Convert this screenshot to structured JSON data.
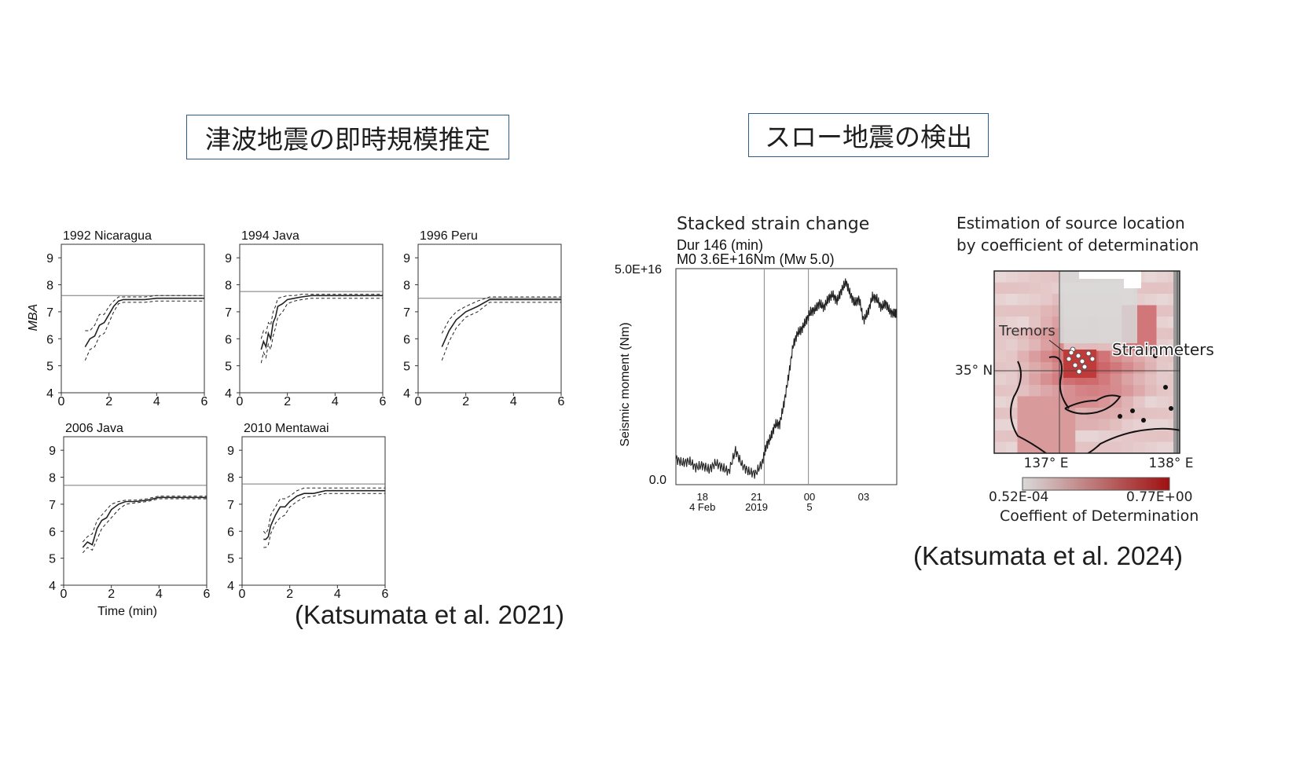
{
  "titles": {
    "left": "津波地震の即時規模推定",
    "right": "スロー地震の検出"
  },
  "citations": {
    "left": "(Katsumata et al. 2021)",
    "right": "(Katsumata et al. 2024)"
  },
  "chart_data": [
    {
      "type": "line",
      "title": "1992 Nicaragua",
      "ylabel": "MBA",
      "xlabel": "",
      "xlim": [
        0,
        6
      ],
      "ylim": [
        4,
        9.5
      ],
      "xticks": [
        "0",
        "2",
        "4",
        "6"
      ],
      "yticks": [
        "4",
        "5",
        "6",
        "7",
        "8",
        "9"
      ],
      "reference": 7.6,
      "series": [
        {
          "style": "solid",
          "x": [
            1.0,
            1.2,
            1.4,
            1.6,
            1.8,
            2.0,
            2.2,
            2.4,
            2.6,
            2.8,
            3.0,
            3.5,
            4.0,
            4.5,
            5.0,
            6.0
          ],
          "y": [
            5.7,
            6.0,
            6.1,
            6.5,
            6.6,
            6.9,
            7.2,
            7.4,
            7.45,
            7.45,
            7.45,
            7.45,
            7.5,
            7.5,
            7.5,
            7.5
          ]
        },
        {
          "style": "dashed",
          "x": [
            1.0,
            1.2,
            1.4,
            1.6,
            1.8,
            2.0,
            2.2,
            2.4,
            2.6,
            2.8,
            3.0,
            3.5,
            4.0,
            4.5,
            5.0,
            6.0
          ],
          "y": [
            6.3,
            6.3,
            6.5,
            6.9,
            6.9,
            7.2,
            7.4,
            7.55,
            7.55,
            7.55,
            7.55,
            7.55,
            7.6,
            7.6,
            7.6,
            7.6
          ]
        },
        {
          "style": "dashed",
          "x": [
            1.0,
            1.2,
            1.4,
            1.6,
            1.8,
            2.0,
            2.2,
            2.4,
            2.6,
            2.8,
            3.0,
            3.5,
            4.0,
            4.5,
            5.0,
            6.0
          ],
          "y": [
            5.2,
            5.6,
            5.7,
            6.1,
            6.2,
            6.6,
            7.0,
            7.3,
            7.35,
            7.35,
            7.35,
            7.35,
            7.4,
            7.4,
            7.4,
            7.4
          ]
        }
      ]
    },
    {
      "type": "line",
      "title": "1994 Java",
      "xlim": [
        0,
        6
      ],
      "ylim": [
        4,
        9.5
      ],
      "xticks": [
        "0",
        "2",
        "4",
        "6"
      ],
      "yticks": [
        "4",
        "5",
        "6",
        "7",
        "8",
        "9"
      ],
      "reference": 7.75,
      "series": [
        {
          "style": "solid",
          "x": [
            0.9,
            1.0,
            1.1,
            1.2,
            1.3,
            1.4,
            1.5,
            1.6,
            1.8,
            2.0,
            2.3,
            2.6,
            3.0,
            3.5,
            4.0,
            5.0,
            6.0
          ],
          "y": [
            5.6,
            5.9,
            5.7,
            6.2,
            6.0,
            6.6,
            6.8,
            7.2,
            7.3,
            7.45,
            7.5,
            7.55,
            7.6,
            7.6,
            7.6,
            7.6,
            7.6
          ]
        },
        {
          "style": "dashed",
          "x": [
            0.9,
            1.0,
            1.1,
            1.2,
            1.3,
            1.4,
            1.5,
            1.6,
            1.8,
            2.0,
            2.3,
            2.6,
            3.0,
            3.5,
            4.0,
            5.0,
            6.0
          ],
          "y": [
            6.0,
            6.3,
            6.2,
            6.6,
            6.5,
            7.0,
            7.2,
            7.5,
            7.55,
            7.6,
            7.6,
            7.65,
            7.65,
            7.65,
            7.65,
            7.65,
            7.65
          ]
        },
        {
          "style": "dashed",
          "x": [
            0.9,
            1.0,
            1.1,
            1.2,
            1.3,
            1.4,
            1.5,
            1.6,
            1.8,
            2.0,
            2.3,
            2.6,
            3.0,
            3.5,
            4.0,
            5.0,
            6.0
          ],
          "y": [
            5.1,
            5.5,
            5.3,
            5.8,
            5.6,
            6.1,
            6.4,
            6.8,
            7.0,
            7.3,
            7.4,
            7.45,
            7.5,
            7.5,
            7.5,
            7.5,
            7.5
          ]
        }
      ]
    },
    {
      "type": "line",
      "title": "1996 Peru",
      "xlim": [
        0,
        6
      ],
      "ylim": [
        4,
        9.5
      ],
      "xticks": [
        "0",
        "2",
        "4",
        "6"
      ],
      "yticks": [
        "4",
        "5",
        "6",
        "7",
        "8",
        "9"
      ],
      "reference": 7.5,
      "series": [
        {
          "style": "solid",
          "x": [
            1.0,
            1.3,
            1.6,
            2.0,
            2.5,
            3.0,
            3.5,
            4.0,
            5.0,
            6.0
          ],
          "y": [
            5.7,
            6.3,
            6.7,
            7.0,
            7.2,
            7.45,
            7.45,
            7.45,
            7.45,
            7.45
          ]
        },
        {
          "style": "dashed",
          "x": [
            1.0,
            1.3,
            1.6,
            2.0,
            2.5,
            3.0,
            3.5,
            4.0,
            5.0,
            6.0
          ],
          "y": [
            6.2,
            6.7,
            7.0,
            7.2,
            7.4,
            7.55,
            7.55,
            7.55,
            7.55,
            7.55
          ]
        },
        {
          "style": "dashed",
          "x": [
            1.0,
            1.3,
            1.6,
            2.0,
            2.5,
            3.0,
            3.5,
            4.0,
            5.0,
            6.0
          ],
          "y": [
            5.2,
            5.9,
            6.4,
            6.8,
            7.0,
            7.35,
            7.35,
            7.35,
            7.35,
            7.35
          ]
        }
      ]
    },
    {
      "type": "line",
      "title": "2006 Java",
      "xlabel": "Time (min)",
      "xlim": [
        0,
        6
      ],
      "ylim": [
        4,
        9.5
      ],
      "xticks": [
        "0",
        "2",
        "4",
        "6"
      ],
      "yticks": [
        "4",
        "5",
        "6",
        "7",
        "8",
        "9"
      ],
      "reference": 7.7,
      "series": [
        {
          "style": "solid",
          "x": [
            0.8,
            1.0,
            1.2,
            1.4,
            1.6,
            1.8,
            2.0,
            2.3,
            2.6,
            3.0,
            3.5,
            4.0,
            5.0,
            6.0
          ],
          "y": [
            5.4,
            5.6,
            5.5,
            6.1,
            6.4,
            6.5,
            6.8,
            7.0,
            7.1,
            7.1,
            7.15,
            7.25,
            7.25,
            7.25
          ]
        },
        {
          "style": "dashed",
          "x": [
            0.8,
            1.0,
            1.2,
            1.4,
            1.6,
            1.8,
            2.0,
            2.3,
            2.6,
            3.0,
            3.5,
            4.0,
            5.0,
            6.0
          ],
          "y": [
            5.6,
            5.8,
            5.9,
            6.4,
            6.6,
            6.8,
            7.0,
            7.1,
            7.15,
            7.15,
            7.2,
            7.3,
            7.3,
            7.3
          ]
        },
        {
          "style": "dashed",
          "x": [
            0.8,
            1.0,
            1.2,
            1.4,
            1.6,
            1.8,
            2.0,
            2.3,
            2.6,
            3.0,
            3.5,
            4.0,
            5.0,
            6.0
          ],
          "y": [
            5.2,
            5.4,
            5.3,
            5.7,
            6.1,
            6.3,
            6.5,
            6.8,
            7.0,
            7.05,
            7.1,
            7.2,
            7.2,
            7.2
          ]
        }
      ]
    },
    {
      "type": "line",
      "title": "2010 Mentawai",
      "xlim": [
        0,
        6
      ],
      "ylim": [
        4,
        9.5
      ],
      "xticks": [
        "0",
        "2",
        "4",
        "6"
      ],
      "yticks": [
        "4",
        "5",
        "6",
        "7",
        "8",
        "9"
      ],
      "reference": 7.75,
      "series": [
        {
          "style": "solid",
          "x": [
            0.9,
            1.0,
            1.1,
            1.2,
            1.4,
            1.6,
            1.8,
            2.0,
            2.3,
            2.6,
            3.0,
            3.5,
            4.0,
            5.0,
            6.0
          ],
          "y": [
            5.7,
            5.7,
            5.8,
            6.2,
            6.6,
            6.9,
            6.9,
            7.1,
            7.3,
            7.4,
            7.4,
            7.5,
            7.5,
            7.5,
            7.5
          ]
        },
        {
          "style": "dashed",
          "x": [
            0.9,
            1.0,
            1.1,
            1.2,
            1.4,
            1.6,
            1.8,
            2.0,
            2.3,
            2.6,
            3.0,
            3.5,
            4.0,
            5.0,
            6.0
          ],
          "y": [
            6.0,
            5.9,
            6.1,
            6.6,
            6.9,
            7.2,
            7.2,
            7.3,
            7.5,
            7.6,
            7.6,
            7.6,
            7.6,
            7.6,
            7.6
          ]
        },
        {
          "style": "dashed",
          "x": [
            0.9,
            1.0,
            1.1,
            1.2,
            1.4,
            1.6,
            1.8,
            2.0,
            2.3,
            2.6,
            3.0,
            3.5,
            4.0,
            5.0,
            6.0
          ],
          "y": [
            5.4,
            5.4,
            5.5,
            5.9,
            6.3,
            6.5,
            6.6,
            6.9,
            7.1,
            7.25,
            7.3,
            7.4,
            7.4,
            7.4,
            7.4
          ]
        }
      ]
    },
    {
      "type": "line",
      "title": "Stacked strain change",
      "subtitle1": "Dur 146 (min)",
      "subtitle2": "M0 3.6E+16Nm (Mw 5.0)",
      "ylabel": "Seismic moment (Nm)",
      "ylim_labels": [
        "0.0",
        "5.0E+16"
      ],
      "ylim": [
        0,
        5e+16
      ],
      "xticks": [
        {
          "line1": "18",
          "line2": "4 Feb",
          "pos": 0.12
        },
        {
          "line1": "21",
          "line2": "2019",
          "pos": 0.365
        },
        {
          "line1": "00",
          "line2": "5",
          "pos": 0.605
        },
        {
          "line1": "03",
          "line2": "",
          "pos": 0.85
        }
      ],
      "vlines": [
        0.4,
        0.6
      ],
      "series": [
        {
          "name": "",
          "x": [
            0.0,
            0.03,
            0.06,
            0.09,
            0.12,
            0.15,
            0.18,
            0.21,
            0.24,
            0.27,
            0.3,
            0.33,
            0.36,
            0.39,
            0.41,
            0.43,
            0.45,
            0.47,
            0.49,
            0.51,
            0.53,
            0.55,
            0.57,
            0.59,
            0.61,
            0.63,
            0.65,
            0.67,
            0.69,
            0.71,
            0.73,
            0.75,
            0.77,
            0.79,
            0.81,
            0.83,
            0.85,
            0.87,
            0.89,
            0.91,
            0.93,
            0.95,
            0.97,
            0.99,
            1.0
          ],
          "y": [
            0.6,
            0.5,
            0.55,
            0.4,
            0.45,
            0.35,
            0.5,
            0.4,
            0.3,
            0.8,
            0.45,
            0.3,
            0.25,
            0.5,
            0.9,
            1.1,
            1.4,
            1.4,
            1.9,
            2.5,
            3.2,
            3.5,
            3.6,
            3.8,
            4.0,
            4.05,
            4.2,
            4.1,
            4.3,
            4.4,
            4.25,
            4.5,
            4.7,
            4.4,
            4.2,
            4.3,
            3.8,
            4.0,
            4.35,
            4.3,
            4.1,
            4.2,
            4.0,
            3.95,
            4.0
          ]
        }
      ]
    },
    {
      "type": "heatmap",
      "title": "Estimation of source location",
      "subtitle": "by coefficient of determination",
      "labels": {
        "tremors": "Tremors",
        "strainmeters": "Strainmeters",
        "lat": "35° N",
        "lon1": "137° E",
        "lon2": "138° E"
      },
      "colorbar": {
        "min_label": "0.52E-04",
        "max_label": "0.77E+00",
        "title": "Coeffient of Determination",
        "colors": [
          "#d9d9d9",
          "#a01010"
        ]
      }
    }
  ]
}
